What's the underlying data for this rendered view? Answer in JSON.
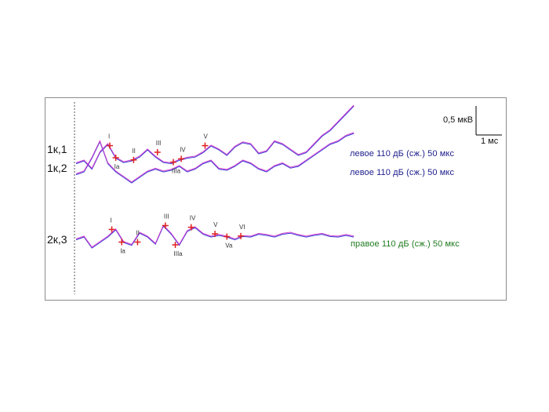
{
  "chart_data": {
    "type": "line",
    "title": "",
    "xlabel": "",
    "ylabel": "",
    "scale_bar": {
      "amplitude": "0,5 мкВ",
      "time": "1 мс"
    },
    "colors": {
      "trace_a": "#3a3ad6",
      "trace_b": "#d040d0",
      "marker": "#e02020",
      "caption_left": "#1c1c8c",
      "caption_right": "#1f7a1f"
    },
    "channels": [
      {
        "label": "1к,1",
        "caption": "левое 110 дБ (сж.) 50 мкс",
        "caption_color": "#1c1c8c",
        "series_x_ms": [
          0,
          0.4,
          0.8,
          1.2,
          1.6,
          2.0,
          2.4,
          2.8,
          3.2,
          3.6,
          4.0,
          4.4,
          4.8,
          5.2,
          5.6,
          6.0,
          6.4,
          6.8,
          7.2,
          7.6,
          8.0,
          8.4,
          8.8,
          9.2,
          9.6,
          10.0,
          10.4,
          10.8,
          11.2,
          11.6,
          12.0,
          12.4,
          12.8,
          13.2,
          13.6,
          14.0
        ],
        "series_y_uv": [
          0.0,
          0.05,
          -0.1,
          0.2,
          0.35,
          0.1,
          0.02,
          0.05,
          0.12,
          0.25,
          0.12,
          0.02,
          0.0,
          0.06,
          0.1,
          0.12,
          0.2,
          0.32,
          0.25,
          0.15,
          0.3,
          0.38,
          0.35,
          0.18,
          0.22,
          0.4,
          0.35,
          0.25,
          0.15,
          0.2,
          0.35,
          0.5,
          0.6,
          0.75,
          0.9,
          1.05
        ],
        "peaks": [
          {
            "name": "I",
            "x": 1.7,
            "y": 0.32
          },
          {
            "name": "Ia",
            "x": 2.0,
            "y": 0.1
          },
          {
            "name": "II",
            "x": 2.9,
            "y": 0.06
          },
          {
            "name": "III",
            "x": 4.1,
            "y": 0.2
          },
          {
            "name": "IIIa",
            "x": 4.9,
            "y": 0.02
          },
          {
            "name": "IV",
            "x": 5.3,
            "y": 0.08
          },
          {
            "name": "V",
            "x": 6.5,
            "y": 0.32
          }
        ]
      },
      {
        "label": "1к,2",
        "caption": "левое 110 дБ (сж.) 50 мкс",
        "caption_color": "#1c1c8c",
        "series_x_ms": [
          0,
          0.4,
          0.8,
          1.2,
          1.6,
          2.0,
          2.4,
          2.8,
          3.2,
          3.6,
          4.0,
          4.4,
          4.8,
          5.2,
          5.6,
          6.0,
          6.4,
          6.8,
          7.2,
          7.6,
          8.0,
          8.4,
          8.8,
          9.2,
          9.6,
          10.0,
          10.4,
          10.8,
          11.2,
          11.6,
          12.0,
          12.4,
          12.8,
          13.2,
          13.6,
          14.0
        ],
        "series_y_uv": [
          0.0,
          0.05,
          0.3,
          0.6,
          0.2,
          0.05,
          -0.05,
          -0.15,
          -0.05,
          0.05,
          0.1,
          0.05,
          0.08,
          0.15,
          0.05,
          0.1,
          0.2,
          0.25,
          0.1,
          0.08,
          0.15,
          0.25,
          0.2,
          0.1,
          0.05,
          0.15,
          0.2,
          0.12,
          0.15,
          0.25,
          0.35,
          0.45,
          0.55,
          0.6,
          0.7,
          0.75
        ]
      },
      {
        "label": "2к,3",
        "caption": "правое 110 дБ (сж.) 50 мкс",
        "caption_color": "#1f7a1f",
        "series_x_ms": [
          0,
          0.4,
          0.8,
          1.2,
          1.6,
          2.0,
          2.4,
          2.8,
          3.2,
          3.6,
          4.0,
          4.4,
          4.8,
          5.2,
          5.6,
          6.0,
          6.4,
          6.8,
          7.2,
          7.6,
          8.0,
          8.4,
          8.8,
          9.2,
          9.6,
          10.0,
          10.4,
          10.8,
          11.2,
          11.6,
          12.0,
          12.4,
          12.8,
          13.2,
          13.6,
          14.0
        ],
        "series_y_uv": [
          0.0,
          0.05,
          -0.15,
          -0.05,
          0.05,
          0.18,
          -0.05,
          -0.1,
          0.12,
          0.05,
          -0.08,
          0.25,
          0.1,
          -0.1,
          0.15,
          0.22,
          0.1,
          0.05,
          0.08,
          0.05,
          0.0,
          0.06,
          0.05,
          0.1,
          0.08,
          0.05,
          0.1,
          0.12,
          0.08,
          0.05,
          0.08,
          0.1,
          0.06,
          0.05,
          0.08,
          0.05
        ],
        "peaks": [
          {
            "name": "I",
            "x": 1.8,
            "y": 0.18
          },
          {
            "name": "Ia",
            "x": 2.3,
            "y": -0.05
          },
          {
            "name": "II",
            "x": 3.1,
            "y": -0.05
          },
          {
            "name": "III",
            "x": 4.5,
            "y": 0.25
          },
          {
            "name": "IIIa",
            "x": 5.0,
            "y": -0.1
          },
          {
            "name": "IV",
            "x": 5.8,
            "y": 0.22
          },
          {
            "name": "V",
            "x": 7.0,
            "y": 0.1
          },
          {
            "name": "Va",
            "x": 7.6,
            "y": 0.05
          },
          {
            "name": "VI",
            "x": 8.3,
            "y": 0.06
          }
        ]
      }
    ]
  }
}
